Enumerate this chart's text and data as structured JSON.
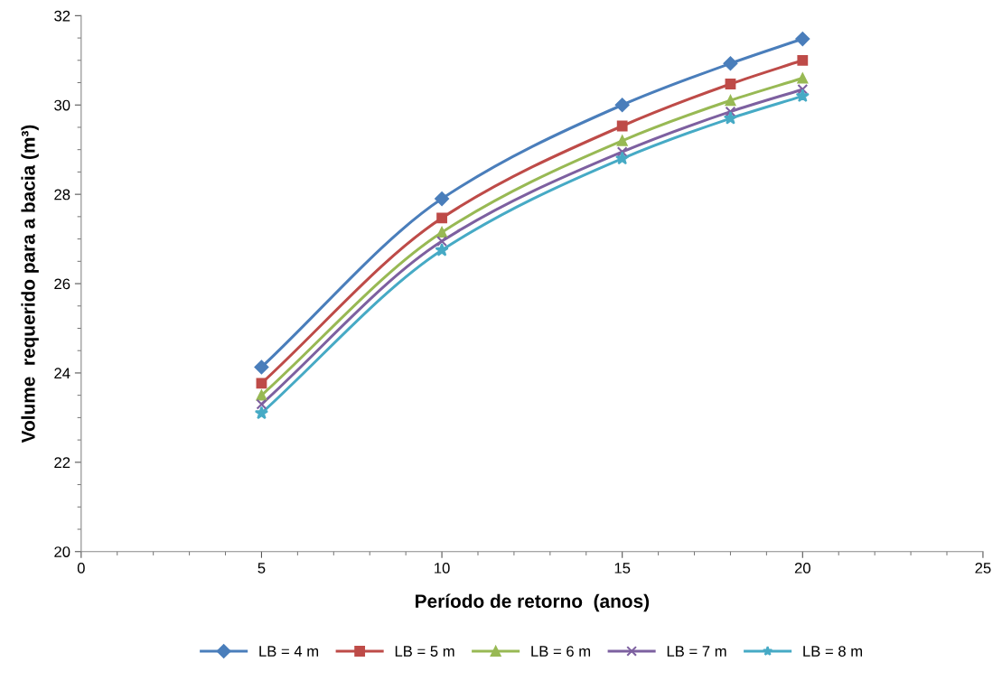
{
  "chart_data": {
    "type": "line",
    "xlabel": "Período de retorno  (anos)",
    "ylabel": "Volume  requerido para a bacia (m³)",
    "x": [
      5,
      10,
      15,
      18,
      20
    ],
    "series": [
      {
        "name": "LB = 4 m",
        "color": "#4a7ebb",
        "marker": "diamond",
        "values": [
          24.13,
          27.9,
          30.0,
          30.93,
          31.48
        ]
      },
      {
        "name": "LB = 5 m",
        "color": "#be4b48",
        "marker": "square",
        "values": [
          23.77,
          27.47,
          29.53,
          30.47,
          31.0
        ]
      },
      {
        "name": "LB = 6 m",
        "color": "#98b954",
        "marker": "triangle",
        "values": [
          23.5,
          27.15,
          29.2,
          30.1,
          30.6
        ]
      },
      {
        "name": "LB = 7 m",
        "color": "#7d60a0",
        "marker": "cross",
        "values": [
          23.3,
          26.95,
          28.95,
          29.85,
          30.35
        ]
      },
      {
        "name": "LB = 8 m",
        "color": "#46aac5",
        "marker": "star",
        "values": [
          23.1,
          26.75,
          28.8,
          29.7,
          30.2
        ]
      }
    ],
    "xlim": [
      0,
      25
    ],
    "xticks": [
      0,
      5,
      10,
      15,
      20,
      25
    ],
    "ylim": [
      20,
      32
    ],
    "yticks": [
      20,
      22,
      24,
      26,
      28,
      30,
      32
    ],
    "grid": false,
    "legend": "bottom",
    "line_style": "solid"
  }
}
